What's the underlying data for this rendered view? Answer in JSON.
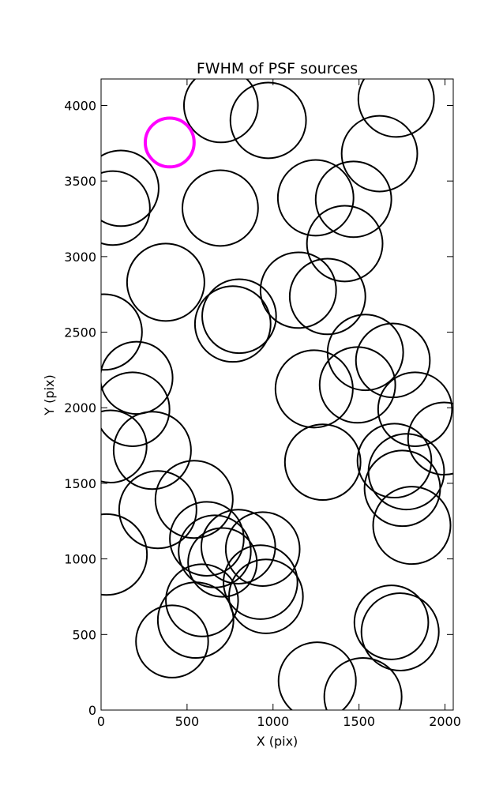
{
  "chart_data": {
    "type": "scatter",
    "title": "FWHM of PSF sources",
    "xlabel": "X (pix)",
    "ylabel": "Y (pix)",
    "xlim": [
      0,
      2048
    ],
    "ylim": [
      0,
      4175
    ],
    "xticks": [
      0,
      500,
      1000,
      1500,
      2000
    ],
    "yticks": [
      0,
      500,
      1000,
      1500,
      2000,
      2500,
      3000,
      3500,
      4000
    ],
    "series": [
      {
        "color": "#000000",
        "x": [
          697,
          972,
          1716,
          1619,
          115,
          69,
          693,
          1248,
          1468,
          1417,
          376,
          1147,
          1317,
          803,
          766,
          18,
          1537,
          1697,
          206,
          1239,
          1491,
          183,
          1826,
          1995,
          55,
          298,
          1289,
          1706,
          1775,
          1752,
          541,
          330,
          1807,
          615,
          798,
          32,
          661,
          940,
          706,
          927,
          959,
          587,
          1688,
          1739,
          550,
          413,
          1257,
          1523
        ],
        "values": [
          4000,
          3901,
          4042,
          3681,
          3452,
          3321,
          3321,
          3389,
          3379,
          3086,
          2830,
          2778,
          2736,
          2606,
          2554,
          2501,
          2366,
          2313,
          2198,
          2125,
          2151,
          1990,
          1990,
          1796,
          1744,
          1718,
          1640,
          1650,
          1577,
          1467,
          1394,
          1326,
          1222,
          1133,
          1081,
          1029,
          1050,
          1065,
          977,
          846,
          752,
          726,
          580,
          517,
          595,
          454,
          193,
          89
        ],
        "sizes": [
          215,
          220,
          220,
          220,
          220,
          215,
          220,
          220,
          220,
          220,
          225,
          220,
          220,
          215,
          220,
          220,
          220,
          215,
          210,
          225,
          220,
          215,
          215,
          210,
          210,
          225,
          220,
          215,
          220,
          220,
          225,
          225,
          225,
          215,
          215,
          235,
          210,
          215,
          200,
          215,
          215,
          210,
          215,
          225,
          220,
          210,
          225,
          225
        ],
        "line_width": 2
      },
      {
        "color": "#ff00ff",
        "x": [
          399
        ],
        "values": [
          3755
        ],
        "sizes": [
          142
        ],
        "line_width": 4
      }
    ]
  }
}
